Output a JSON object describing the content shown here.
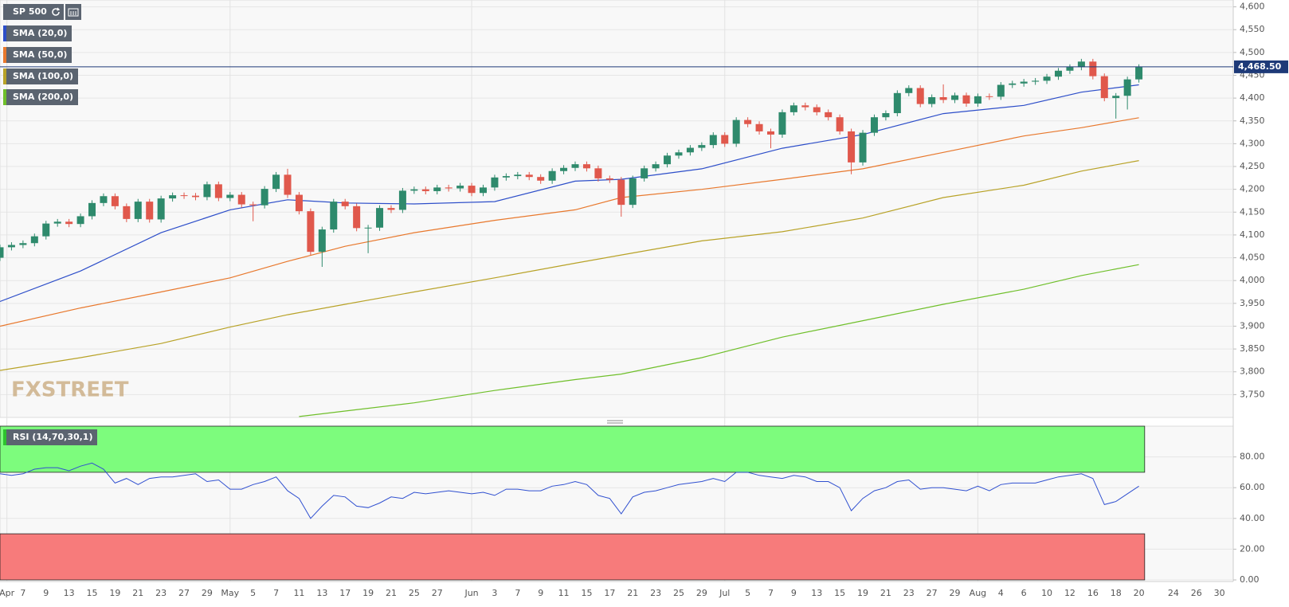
{
  "chart_data": [
    {
      "type": "candlestick",
      "title": "SP 500",
      "brand": "FXSTREET",
      "grid": true,
      "xlim": [
        0,
        107.2
      ],
      "ylim": [
        3700,
        4615
      ],
      "yticks": [
        {
          "value": 3750,
          "label": "3,750"
        },
        {
          "value": 3800,
          "label": "3,800"
        },
        {
          "value": 3850,
          "label": "3,850"
        },
        {
          "value": 3900,
          "label": "3,900"
        },
        {
          "value": 3950,
          "label": "3,950"
        },
        {
          "value": 4000,
          "label": "4,000"
        },
        {
          "value": 4050,
          "label": "4,050"
        },
        {
          "value": 4100,
          "label": "4,100"
        },
        {
          "value": 4150,
          "label": "4,150"
        },
        {
          "value": 4200,
          "label": "4,200"
        },
        {
          "value": 4250,
          "label": "4,250"
        },
        {
          "value": 4300,
          "label": "4,300"
        },
        {
          "value": 4350,
          "label": "4,350"
        },
        {
          "value": 4400,
          "label": "4,400"
        },
        {
          "value": 4450,
          "label": "4,450"
        },
        {
          "value": 4500,
          "label": "4,500"
        },
        {
          "value": 4550,
          "label": "4,550"
        },
        {
          "value": 4600,
          "label": "4,600"
        }
      ],
      "last": {
        "value": 4468.5,
        "label": "4,468.50",
        "color": "#1e3a78"
      },
      "up_color": "#2e8a6c",
      "down_color": "#e0584c",
      "candles": {
        "open": [
          4050,
          4073,
          4078,
          4082,
          4097,
          4125,
          4129,
          4124,
          4141,
          4170,
          4185,
          4163,
          4135,
          4173,
          4134,
          4180,
          4187,
          4186,
          4183,
          4211,
          4181,
          4188,
          4167,
          4165,
          4201,
          4232,
          4188,
          4152,
          4063,
          4112,
          4173,
          4163,
          4115,
          4116,
          4159,
          4155,
          4197,
          4200,
          4196,
          4204,
          4202,
          4208,
          4192,
          4204,
          4226,
          4229,
          4232,
          4227,
          4219,
          4240,
          4247,
          4255,
          4246,
          4224,
          4221,
          4166,
          4224,
          4246,
          4255,
          4274,
          4281,
          4291,
          4297,
          4319,
          4300,
          4352,
          4343,
          4327,
          4320,
          4369,
          4384,
          4380,
          4369,
          4358,
          4327,
          4259,
          4324,
          4358,
          4367,
          4411,
          4422,
          4387,
          4402,
          4396,
          4406,
          4388,
          4404,
          4403,
          4429,
          4432,
          4436,
          4438,
          4447,
          4460,
          4468,
          4480,
          4448,
          4400,
          4405,
          4441
        ],
        "high": [
          4079,
          4084,
          4088,
          4103,
          4131,
          4135,
          4135,
          4147,
          4176,
          4191,
          4191,
          4169,
          4179,
          4179,
          4186,
          4193,
          4193,
          4192,
          4217,
          4217,
          4194,
          4194,
          4173,
          4207,
          4238,
          4245,
          4194,
          4158,
          4118,
          4179,
          4179,
          4169,
          4122,
          4165,
          4165,
          4203,
          4206,
          4206,
          4210,
          4210,
          4214,
          4214,
          4210,
          4232,
          4235,
          4238,
          4238,
          4233,
          4246,
          4253,
          4261,
          4261,
          4252,
          4230,
          4227,
          4230,
          4252,
          4261,
          4280,
          4287,
          4297,
          4303,
          4325,
          4325,
          4358,
          4358,
          4349,
          4333,
          4375,
          4390,
          4390,
          4386,
          4375,
          4364,
          4333,
          4330,
          4364,
          4373,
          4417,
          4428,
          4428,
          4408,
          4430,
          4412,
          4412,
          4410,
          4410,
          4435,
          4438,
          4442,
          4444,
          4453,
          4466,
          4474,
          4486,
          4486,
          4454,
          4411,
          4447,
          4474
        ],
        "low": [
          4043,
          4066,
          4071,
          4075,
          4090,
          4118,
          4117,
          4117,
          4134,
          4163,
          4156,
          4128,
          4128,
          4127,
          4127,
          4173,
          4179,
          4176,
          4176,
          4174,
          4174,
          4160,
          4130,
          4158,
          4194,
          4181,
          4145,
          4056,
          4030,
          4105,
          4156,
          4108,
          4060,
          4109,
          4148,
          4148,
          4190,
          4189,
          4189,
          4195,
          4195,
          4185,
          4185,
          4197,
          4219,
          4222,
          4220,
          4212,
          4212,
          4233,
          4240,
          4239,
          4217,
          4214,
          4140,
          4159,
          4217,
          4239,
          4248,
          4267,
          4274,
          4284,
          4290,
          4293,
          4293,
          4336,
          4320,
          4290,
          4313,
          4362,
          4373,
          4362,
          4351,
          4320,
          4233,
          4252,
          4317,
          4351,
          4360,
          4404,
          4380,
          4380,
          4389,
          4389,
          4381,
          4381,
          4396,
          4396,
          4422,
          4425,
          4429,
          4431,
          4440,
          4453,
          4461,
          4441,
          4393,
          4355,
          4375,
          4434
        ],
        "close": [
          4073,
          4078,
          4082,
          4097,
          4125,
          4129,
          4124,
          4141,
          4170,
          4185,
          4163,
          4135,
          4173,
          4134,
          4180,
          4187,
          4186,
          4183,
          4211,
          4181,
          4188,
          4167,
          4165,
          4201,
          4232,
          4188,
          4152,
          4063,
          4112,
          4173,
          4163,
          4115,
          4116,
          4159,
          4155,
          4197,
          4200,
          4196,
          4204,
          4202,
          4208,
          4192,
          4204,
          4226,
          4229,
          4232,
          4227,
          4219,
          4240,
          4247,
          4255,
          4246,
          4224,
          4221,
          4166,
          4224,
          4246,
          4255,
          4274,
          4281,
          4291,
          4297,
          4319,
          4300,
          4352,
          4343,
          4327,
          4320,
          4369,
          4384,
          4380,
          4369,
          4358,
          4327,
          4259,
          4324,
          4358,
          4367,
          4411,
          4422,
          4387,
          4402,
          4396,
          4406,
          4388,
          4404,
          4403,
          4429,
          4432,
          4436,
          4438,
          4447,
          4460,
          4468,
          4480,
          4448,
          4400,
          4405,
          4441,
          4468
        ]
      },
      "series": [
        {
          "name": "SMA (20,0)",
          "color": "#2d4ec9",
          "x": [
            0,
            7,
            14,
            20,
            25,
            30,
            36,
            43,
            50,
            54,
            61,
            68,
            75,
            82,
            89,
            94,
            99
          ],
          "values": [
            3954,
            4021,
            4105,
            4155,
            4177,
            4170,
            4168,
            4173,
            4218,
            4222,
            4245,
            4290,
            4320,
            4366,
            4384,
            4413,
            4429
          ]
        },
        {
          "name": "SMA (50,0)",
          "color": "#e8782d",
          "x": [
            0,
            7,
            14,
            20,
            25,
            30,
            36,
            43,
            50,
            54,
            61,
            68,
            75,
            82,
            89,
            94,
            99
          ],
          "values": [
            3900,
            3940,
            3975,
            4006,
            4042,
            4075,
            4105,
            4132,
            4155,
            4182,
            4200,
            4222,
            4245,
            4281,
            4317,
            4335,
            4357
          ]
        },
        {
          "name": "SMA (100,0)",
          "color": "#b8a227",
          "x": [
            0,
            7,
            14,
            20,
            25,
            30,
            36,
            43,
            50,
            54,
            61,
            68,
            75,
            82,
            89,
            94,
            99
          ],
          "values": [
            3803,
            3831,
            3862,
            3898,
            3925,
            3948,
            3975,
            4006,
            4038,
            4056,
            4087,
            4107,
            4137,
            4182,
            4209,
            4240,
            4263
          ]
        },
        {
          "name": "SMA (200,0)",
          "color": "#6fbf2a",
          "x": [
            26,
            30,
            36,
            43,
            50,
            54,
            61,
            68,
            75,
            82,
            89,
            94,
            99
          ],
          "values": [
            3702,
            3714,
            3732,
            3759,
            3783,
            3795,
            3831,
            3876,
            3912,
            3948,
            3981,
            4011,
            4035
          ]
        }
      ]
    },
    {
      "type": "line",
      "xlim": [
        0,
        107.2
      ],
      "ylim": [
        0,
        100
      ],
      "yticks": [
        {
          "value": 0,
          "label": "0.00"
        },
        {
          "value": 20,
          "label": "20.00"
        },
        {
          "value": 40,
          "label": "40.00"
        },
        {
          "value": 60,
          "label": "60.00"
        },
        {
          "value": 80,
          "label": "80.00"
        }
      ],
      "bands": [
        {
          "from": 70,
          "to": 100,
          "color": "#7dfc7d"
        },
        {
          "from": 0,
          "to": 30,
          "color": "#f77b7b"
        }
      ],
      "series": [
        {
          "name": "RSI (14,70,30,1)",
          "color": "#3050d0",
          "values": [
            69,
            68,
            69,
            72,
            73,
            73,
            71,
            74,
            76,
            72,
            63,
            66,
            62,
            66,
            67,
            67,
            68,
            69,
            64,
            65,
            59,
            59,
            62,
            64,
            67,
            58,
            53,
            40,
            48,
            55,
            54,
            48,
            47,
            50,
            54,
            53,
            57,
            56,
            57,
            58,
            57,
            56,
            57,
            55,
            59,
            59,
            58,
            58,
            61,
            62,
            64,
            62,
            55,
            53,
            43,
            54,
            57,
            58,
            60,
            62,
            63,
            64,
            66,
            64,
            70,
            70,
            68,
            67,
            66,
            68,
            67,
            64,
            64,
            60,
            45,
            53,
            58,
            60,
            64,
            65,
            59,
            60,
            60,
            59,
            58,
            61,
            58,
            62,
            63,
            63,
            63,
            65,
            67,
            68,
            69,
            66,
            49,
            51,
            56,
            61
          ]
        }
      ],
      "xticks": [
        {
          "value": 0.6,
          "label": "Apr"
        },
        {
          "value": 2,
          "label": "7"
        },
        {
          "value": 4,
          "label": "9"
        },
        {
          "value": 6,
          "label": "13"
        },
        {
          "value": 8,
          "label": "15"
        },
        {
          "value": 10,
          "label": "19"
        },
        {
          "value": 12,
          "label": "21"
        },
        {
          "value": 14,
          "label": "23"
        },
        {
          "value": 16,
          "label": "27"
        },
        {
          "value": 18,
          "label": "29"
        },
        {
          "value": 20,
          "label": "May"
        },
        {
          "value": 22,
          "label": "5"
        },
        {
          "value": 24,
          "label": "7"
        },
        {
          "value": 26,
          "label": "11"
        },
        {
          "value": 28,
          "label": "13"
        },
        {
          "value": 30,
          "label": "17"
        },
        {
          "value": 32,
          "label": "19"
        },
        {
          "value": 34,
          "label": "21"
        },
        {
          "value": 36,
          "label": "25"
        },
        {
          "value": 38,
          "label": "27"
        },
        {
          "value": 41,
          "label": "Jun"
        },
        {
          "value": 43,
          "label": "3"
        },
        {
          "value": 45,
          "label": "7"
        },
        {
          "value": 47,
          "label": "9"
        },
        {
          "value": 49,
          "label": "11"
        },
        {
          "value": 51,
          "label": "15"
        },
        {
          "value": 53,
          "label": "17"
        },
        {
          "value": 55,
          "label": "21"
        },
        {
          "value": 57,
          "label": "23"
        },
        {
          "value": 59,
          "label": "25"
        },
        {
          "value": 61,
          "label": "29"
        },
        {
          "value": 63,
          "label": "Jul"
        },
        {
          "value": 65,
          "label": "5"
        },
        {
          "value": 67,
          "label": "7"
        },
        {
          "value": 69,
          "label": "9"
        },
        {
          "value": 71,
          "label": "13"
        },
        {
          "value": 73,
          "label": "15"
        },
        {
          "value": 75,
          "label": "19"
        },
        {
          "value": 77,
          "label": "21"
        },
        {
          "value": 79,
          "label": "23"
        },
        {
          "value": 81,
          "label": "27"
        },
        {
          "value": 83,
          "label": "29"
        },
        {
          "value": 85,
          "label": "Aug"
        },
        {
          "value": 87,
          "label": "4"
        },
        {
          "value": 89,
          "label": "6"
        },
        {
          "value": 91,
          "label": "10"
        },
        {
          "value": 93,
          "label": "12"
        },
        {
          "value": 95,
          "label": "16"
        },
        {
          "value": 97,
          "label": "18"
        },
        {
          "value": 99,
          "label": "20"
        },
        {
          "value": 102,
          "label": "24"
        },
        {
          "value": 104,
          "label": "26"
        },
        {
          "value": 106,
          "label": "30"
        }
      ]
    }
  ]
}
